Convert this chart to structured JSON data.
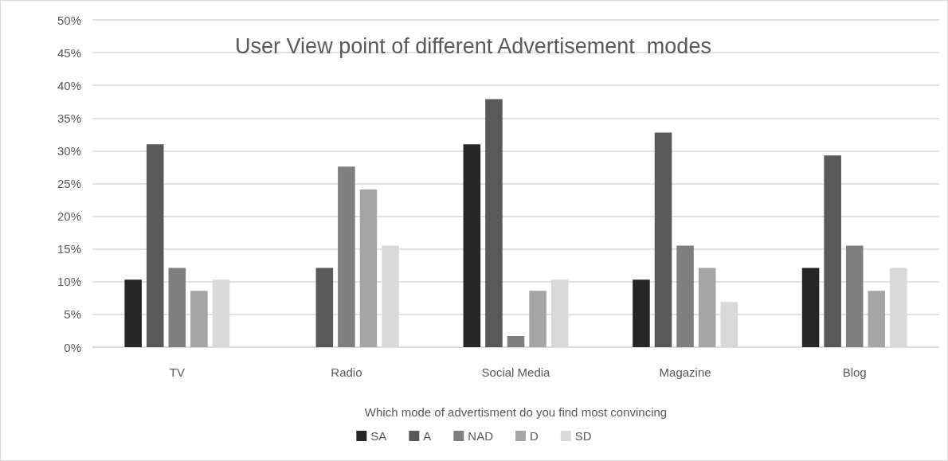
{
  "chart_data": {
    "type": "bar",
    "title": "User View point of different Advertisement  modes",
    "xlabel": "Which mode of advertisment do you find most convincing",
    "categories": [
      "TV",
      "Radio",
      "Social Media",
      "Magazine",
      "Blog"
    ],
    "series": [
      {
        "name": "SA",
        "color": "#262626",
        "values": [
          10.3,
          0,
          31.0,
          10.3,
          12.1
        ]
      },
      {
        "name": "A",
        "color": "#595959",
        "values": [
          31.0,
          12.1,
          37.9,
          32.8,
          29.3
        ]
      },
      {
        "name": "NAD",
        "color": "#7f7f7f",
        "values": [
          12.1,
          27.6,
          1.7,
          15.5,
          15.5
        ]
      },
      {
        "name": "D",
        "color": "#a5a5a5",
        "values": [
          8.6,
          24.1,
          8.6,
          12.1,
          8.6
        ]
      },
      {
        "name": "SD",
        "color": "#d9d9d9",
        "values": [
          10.3,
          15.5,
          10.3,
          6.9,
          12.1
        ]
      }
    ],
    "ylim": [
      0,
      50
    ],
    "yticks": [
      {
        "value": 0,
        "label": "0%"
      },
      {
        "value": 5,
        "label": "5%"
      },
      {
        "value": 10,
        "label": "10%"
      },
      {
        "value": 15,
        "label": "15%"
      },
      {
        "value": 20,
        "label": "20%"
      },
      {
        "value": 25,
        "label": "25%"
      },
      {
        "value": 30,
        "label": "30%"
      },
      {
        "value": 35,
        "label": "35%"
      },
      {
        "value": 40,
        "label": "40%"
      },
      {
        "value": 45,
        "label": "45%"
      },
      {
        "value": 50,
        "label": "50%"
      }
    ],
    "grid": "y",
    "legend": "bottom"
  }
}
